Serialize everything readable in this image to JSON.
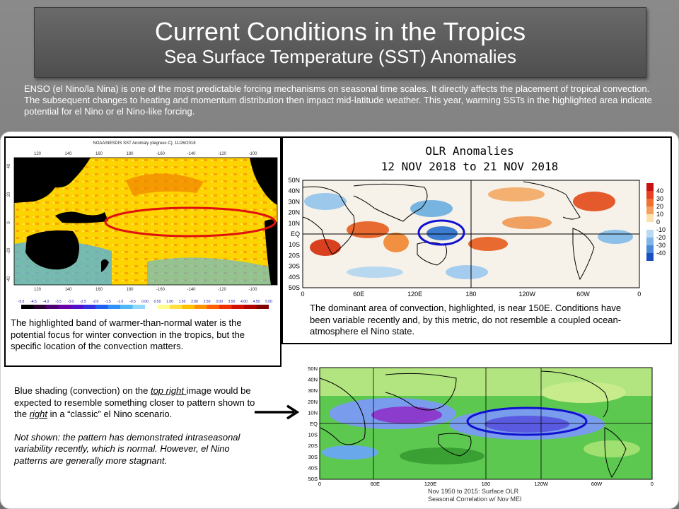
{
  "header": {
    "title": "Current Conditions in the Tropics",
    "subtitle": "Sea Surface Temperature (SST) Anomalies"
  },
  "intro_text": "ENSO (el Nino/la Nina) is one of the most predictable forcing mechanisms on seasonal time scales. It directly affects the placement of tropical convection. The subsequent changes to heating and momentum distribution then impact mid-latitude weather. This year, warming SSTs in the highlighted area indicate potential for el Nino or el Nino-like forcing.",
  "sst_map": {
    "caption": "NOAA/NESDIS SST Anomaly (degrees C), 11/26/2018",
    "lon_labels": [
      "120",
      "140",
      "160",
      "180",
      "-160",
      "-140",
      "-120",
      "-100"
    ],
    "lat_labels": [
      "40",
      "20",
      "0",
      "-20",
      "-40"
    ],
    "scale_labels": [
      "-5.0",
      "-4.5",
      "-4.0",
      "-3.5",
      "-3.0",
      "-2.5",
      "-2.0",
      "-1.5",
      "-1.0",
      "-0.5",
      "0.00",
      "0.50",
      "1.00",
      "1.50",
      "2.00",
      "2.50",
      "3.00",
      "3.50",
      "4.00",
      "4.50",
      "5.00"
    ],
    "description": "The highlighted band of warmer-than-normal water is the potential focus for winter convection in the tropics, but the specific location of the convection matters."
  },
  "olr_map": {
    "title_line1": "OLR Anomalies",
    "title_line2": "12 NOV 2018 to 21 NOV 2018",
    "lat_labels": [
      "50N",
      "40N",
      "30N",
      "20N",
      "10N",
      "EQ",
      "10S",
      "20S",
      "30S",
      "40S",
      "50S"
    ],
    "lon_labels": [
      "0",
      "60E",
      "120E",
      "180",
      "120W",
      "60W",
      "0"
    ],
    "colorbar_labels": [
      "40",
      "30",
      "20",
      "10",
      "0",
      "-10",
      "-20",
      "-30",
      "-40"
    ],
    "description": "The dominant area of convection, highlighted, is near 150E. Conditions have been variable recently and, by this metric, do not resemble a coupled ocean-atmosphere el Nino state."
  },
  "corr_map": {
    "lat_labels": [
      "50N",
      "40N",
      "30N",
      "20N",
      "10N",
      "EQ",
      "10S",
      "20S",
      "30S",
      "40S",
      "50S"
    ],
    "lon_labels": [
      "0",
      "60E",
      "120E",
      "180",
      "120W",
      "60W",
      "0"
    ],
    "caption_line1": "Nov 1950 to 2015: Surface OLR",
    "caption_line2": "Seasonal Correlation w/ Nov MEI"
  },
  "bottom_left": {
    "p1_pre": "Blue shading (convection) on the ",
    "p1_link1": "top right ",
    "p1_mid": "image would be expected to resemble something closer to pattern shown to the ",
    "p1_link2": "right",
    "p1_post": " in a “classic” el Nino scenario.",
    "p2": "Not shown: the pattern has demonstrated intraseasonal variability recently, which is normal. However, el Nino patterns are generally more stagnant."
  },
  "colors": {
    "highlight_red": "#e01010",
    "highlight_blue": "#1010d0"
  }
}
